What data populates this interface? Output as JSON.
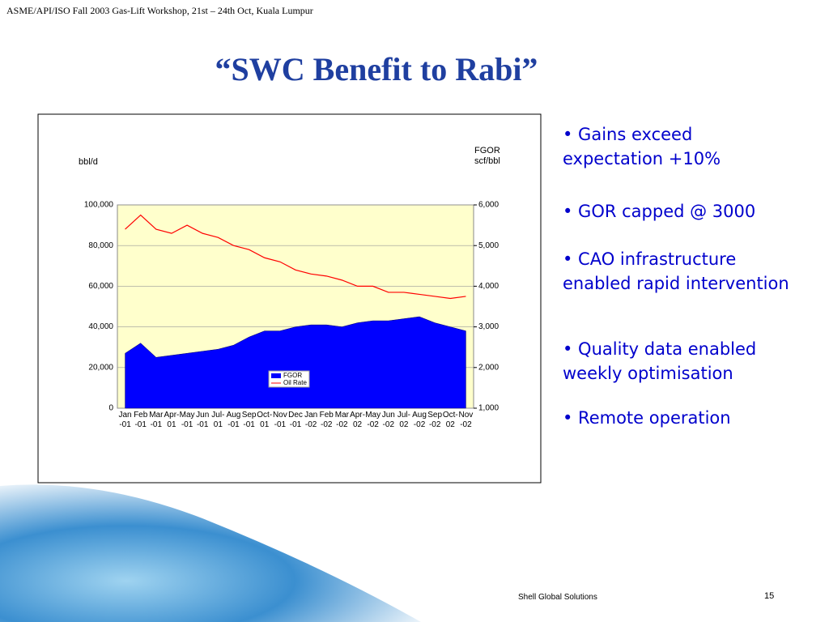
{
  "header": "ASME/API/ISO Fall 2003 Gas-Lift Workshop, 21st – 24th Oct, Kuala Lumpur",
  "title": "“SWC Benefit to Rabi”",
  "bullets": [
    "• Gains exceed expectation +10%",
    "• GOR capped @ 3000",
    "• CAO infrastructure enabled rapid intervention",
    "• Quality data enabled weekly optimisation",
    "• Remote operation"
  ],
  "footer": {
    "company": "Shell Global Solutions",
    "page": "15"
  },
  "chart_data": {
    "type": "line",
    "ylabel": "bbl/d",
    "y2label": "FGOR scf/bbl",
    "categories": [
      "Jan-01",
      "Feb-01",
      "Mar-01",
      "Apr-01",
      "May-01",
      "Jun-01",
      "Jul-01",
      "Aug-01",
      "Sep-01",
      "Oct-01",
      "Nov-01",
      "Dec-01",
      "Jan-02",
      "Feb-02",
      "Mar-02",
      "Apr-02",
      "May-02",
      "Jun-02",
      "Jul-02",
      "Aug-02",
      "Sep-02",
      "Oct-02",
      "Nov-02"
    ],
    "series": [
      {
        "name": "FGOR",
        "color": "#0000ff",
        "axis": "y2",
        "values": [
          2350,
          2600,
          2250,
          2300,
          2350,
          2400,
          2450,
          2550,
          2750,
          2900,
          2900,
          3000,
          3050,
          3050,
          3000,
          3100,
          3150,
          3150,
          3200,
          3250,
          3100,
          3000,
          2900
        ]
      },
      {
        "name": "Oil Rate",
        "color": "#ff0000",
        "values": [
          88000,
          95000,
          88000,
          86000,
          90000,
          86000,
          84000,
          80000,
          78000,
          74000,
          72000,
          68000,
          66000,
          65000,
          63000,
          60000,
          60000,
          57000,
          57000,
          56000,
          55000,
          54000,
          55000
        ]
      }
    ],
    "ylim": [
      0,
      100000
    ],
    "yticks": [
      0,
      {
        "value": 20000,
        "label": "20,000"
      },
      {
        "value": 40000,
        "label": "40,000"
      },
      {
        "value": 60000,
        "label": "60,000"
      },
      {
        "value": 80000,
        "label": "80,000"
      },
      {
        "value": 100000,
        "label": "100,000"
      }
    ],
    "y2lim": [
      1000,
      6000
    ],
    "y2ticks": [
      {
        "value": 1000,
        "label": "1,000"
      },
      {
        "value": 2000,
        "label": "2,000"
      },
      {
        "value": 3000,
        "label": "3,000"
      },
      {
        "value": 4000,
        "label": "4,000"
      },
      {
        "value": 5000,
        "label": "5,000"
      },
      {
        "value": 6000,
        "label": "6,000"
      }
    ],
    "background": "#ffffcc"
  }
}
